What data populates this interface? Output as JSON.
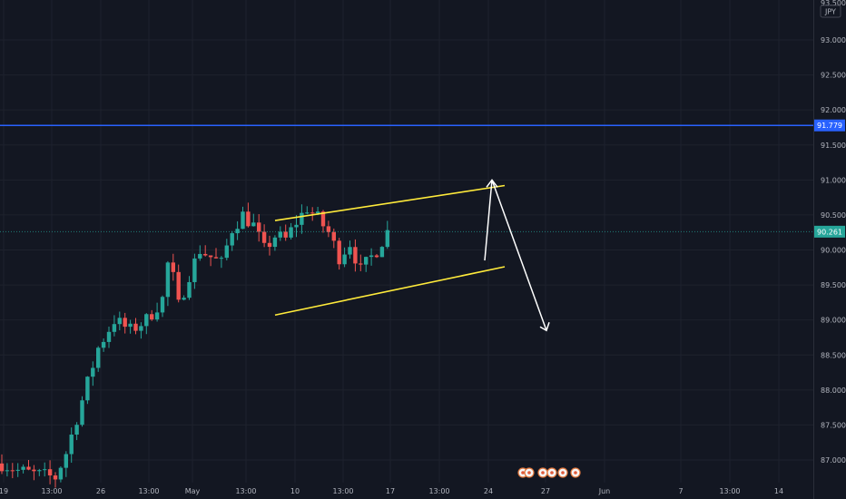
{
  "chart_data": {
    "type": "candlestick",
    "symbol_currency": "JPY",
    "x_ticks": [
      "19",
      "13:00",
      "26",
      "13:00",
      "May",
      "13:00",
      "10",
      "13:00",
      "17",
      "13:00",
      "24",
      "27",
      "Jun",
      "7",
      "13:00",
      "14"
    ],
    "y_ticks": [
      "93.000",
      "92.500",
      "92.000",
      "91.500",
      "91.000",
      "90.500",
      "90.000",
      "89.500",
      "89.000",
      "88.500",
      "88.000",
      "87.500",
      "87.000"
    ],
    "y_top_cut_label": "93.500",
    "ylim": [
      86.75,
      93.55
    ],
    "horizontal_line": {
      "value": 91.779,
      "label": "91.779",
      "color": "#2962ff"
    },
    "last_price": {
      "value": 90.261,
      "label": "90.261",
      "color": "#26a69a"
    },
    "channel": {
      "upper": [
        [
          0.0,
          90.42
        ],
        [
          1.0,
          90.92
        ]
      ],
      "lower": [
        [
          0.0,
          89.07
        ],
        [
          1.0,
          89.76
        ]
      ],
      "color": "#ffeb3b"
    },
    "projection": {
      "path": [
        [
          90.0,
          89.85
        ],
        [
          90.5,
          91.0
        ],
        [
          91.0,
          88.85
        ]
      ],
      "color": "#ffffff"
    },
    "colors": {
      "up": "#26a69a",
      "down": "#ef5350",
      "background": "#131722",
      "grid": "#1e222d",
      "axis_text": "#b2b5be"
    },
    "candles": {
      "count": 90,
      "close_path": [
        [
          0,
          86.95
        ],
        [
          3,
          86.85
        ],
        [
          6,
          86.8
        ],
        [
          10,
          86.75
        ],
        [
          12,
          87.1
        ],
        [
          14,
          87.6
        ],
        [
          16,
          88.1
        ],
        [
          18,
          88.6
        ],
        [
          21,
          89.0
        ],
        [
          24,
          88.85
        ],
        [
          27,
          89.0
        ],
        [
          30,
          89.3
        ],
        [
          31,
          89.8
        ],
        [
          32,
          89.6
        ],
        [
          33,
          89.2
        ],
        [
          35,
          89.65
        ],
        [
          37,
          90.0
        ],
        [
          39,
          89.9
        ],
        [
          41,
          89.8
        ],
        [
          43,
          90.3
        ],
        [
          45,
          90.5
        ],
        [
          47,
          90.35
        ],
        [
          49,
          90.0
        ],
        [
          51,
          90.2
        ],
        [
          53,
          90.15
        ],
        [
          55,
          90.4
        ],
        [
          57,
          90.6
        ],
        [
          59,
          90.45
        ],
        [
          61,
          90.25
        ],
        [
          63,
          89.9
        ],
        [
          65,
          90.1
        ],
        [
          67,
          89.7
        ],
        [
          70,
          90.0
        ],
        [
          72,
          90.26
        ]
      ]
    }
  }
}
